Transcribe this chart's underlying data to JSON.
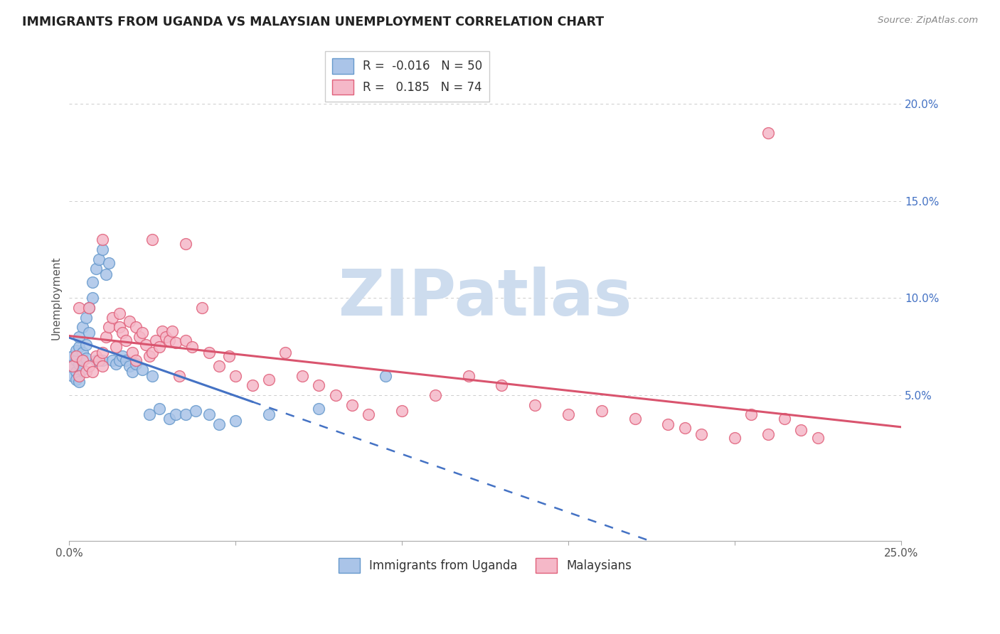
{
  "title": "IMMIGRANTS FROM UGANDA VS MALAYSIAN UNEMPLOYMENT CORRELATION CHART",
  "source": "Source: ZipAtlas.com",
  "ylabel": "Unemployment",
  "series1_label": "Immigrants from Uganda",
  "series2_label": "Malaysians",
  "series1_R": "-0.016",
  "series1_N": "50",
  "series2_R": "0.185",
  "series2_N": "74",
  "series1_color": "#aac4e8",
  "series2_color": "#f5b8c8",
  "series1_edge_color": "#6699cc",
  "series2_edge_color": "#e0607a",
  "series1_line_color": "#4472c4",
  "series2_line_color": "#d9546e",
  "xlim": [
    0.0,
    0.25
  ],
  "ylim": [
    -0.025,
    0.225
  ],
  "watermark": "ZIPatlas",
  "watermark_color": "#cddcee",
  "background_color": "#ffffff",
  "grid_color": "#cccccc",
  "series1_x": [
    0.001,
    0.001,
    0.001,
    0.002,
    0.002,
    0.002,
    0.002,
    0.003,
    0.003,
    0.003,
    0.003,
    0.004,
    0.004,
    0.004,
    0.005,
    0.005,
    0.005,
    0.006,
    0.006,
    0.007,
    0.007,
    0.008,
    0.008,
    0.009,
    0.01,
    0.01,
    0.011,
    0.012,
    0.013,
    0.014,
    0.015,
    0.016,
    0.017,
    0.018,
    0.019,
    0.02,
    0.022,
    0.024,
    0.025,
    0.027,
    0.03,
    0.032,
    0.035,
    0.038,
    0.042,
    0.045,
    0.05,
    0.06,
    0.075,
    0.095
  ],
  "series1_y": [
    0.065,
    0.07,
    0.06,
    0.068,
    0.062,
    0.073,
    0.058,
    0.075,
    0.066,
    0.08,
    0.057,
    0.085,
    0.063,
    0.072,
    0.09,
    0.069,
    0.076,
    0.095,
    0.082,
    0.1,
    0.108,
    0.115,
    0.068,
    0.12,
    0.125,
    0.068,
    0.112,
    0.118,
    0.068,
    0.066,
    0.068,
    0.07,
    0.068,
    0.065,
    0.062,
    0.066,
    0.063,
    0.04,
    0.06,
    0.043,
    0.038,
    0.04,
    0.04,
    0.042,
    0.04,
    0.035,
    0.037,
    0.04,
    0.043,
    0.06
  ],
  "series2_x": [
    0.001,
    0.002,
    0.003,
    0.003,
    0.004,
    0.005,
    0.006,
    0.006,
    0.007,
    0.008,
    0.009,
    0.01,
    0.01,
    0.011,
    0.012,
    0.013,
    0.014,
    0.015,
    0.015,
    0.016,
    0.017,
    0.018,
    0.019,
    0.02,
    0.02,
    0.021,
    0.022,
    0.023,
    0.024,
    0.025,
    0.026,
    0.027,
    0.028,
    0.029,
    0.03,
    0.031,
    0.032,
    0.033,
    0.035,
    0.037,
    0.04,
    0.042,
    0.045,
    0.048,
    0.05,
    0.055,
    0.06,
    0.065,
    0.07,
    0.075,
    0.08,
    0.085,
    0.09,
    0.1,
    0.11,
    0.12,
    0.13,
    0.14,
    0.15,
    0.16,
    0.17,
    0.18,
    0.185,
    0.19,
    0.2,
    0.205,
    0.21,
    0.215,
    0.22,
    0.225,
    0.01,
    0.025,
    0.035,
    0.21
  ],
  "series2_y": [
    0.065,
    0.07,
    0.06,
    0.095,
    0.068,
    0.062,
    0.095,
    0.065,
    0.062,
    0.07,
    0.068,
    0.065,
    0.072,
    0.08,
    0.085,
    0.09,
    0.075,
    0.085,
    0.092,
    0.082,
    0.078,
    0.088,
    0.072,
    0.085,
    0.068,
    0.08,
    0.082,
    0.076,
    0.07,
    0.072,
    0.078,
    0.075,
    0.083,
    0.08,
    0.078,
    0.083,
    0.077,
    0.06,
    0.078,
    0.075,
    0.095,
    0.072,
    0.065,
    0.07,
    0.06,
    0.055,
    0.058,
    0.072,
    0.06,
    0.055,
    0.05,
    0.045,
    0.04,
    0.042,
    0.05,
    0.06,
    0.055,
    0.045,
    0.04,
    0.042,
    0.038,
    0.035,
    0.033,
    0.03,
    0.028,
    0.04,
    0.03,
    0.038,
    0.032,
    0.028,
    0.13,
    0.13,
    0.128,
    0.185
  ]
}
